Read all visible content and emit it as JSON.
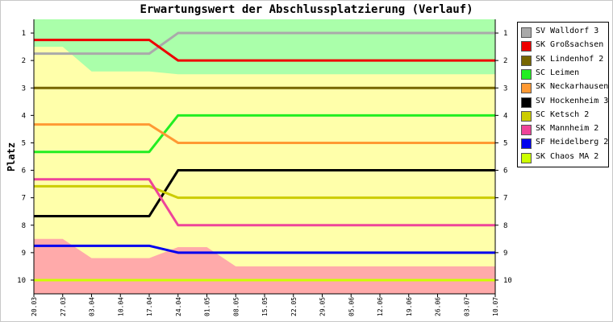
{
  "chart_data": {
    "type": "line",
    "title": "Erwartungswert der Abschlussplatzierung (Verlauf)",
    "ylabel": "Platz",
    "xlabel": "",
    "categories": [
      "20.03",
      "27.03",
      "03.04",
      "10.04",
      "17.04",
      "24.04",
      "01.05",
      "08.05",
      "15.05",
      "22.05",
      "29.05",
      "05.06",
      "12.06",
      "19.06",
      "26.06",
      "03.07",
      "10.07"
    ],
    "ylim": [
      0.5,
      10.5
    ],
    "y_ticks": [
      "1",
      "2",
      "3",
      "4",
      "5",
      "6",
      "7",
      "8",
      "9",
      "10"
    ],
    "y_inverted": true,
    "legend_position": "right",
    "grid": false,
    "bands": {
      "promotion": {
        "color": "#aaffaa",
        "lower_edge": [
          1.5,
          1.5,
          2.4,
          2.4,
          2.4,
          2.5,
          2.5,
          2.5,
          2.5,
          2.5,
          2.5,
          2.5,
          2.5,
          2.5,
          2.5,
          2.5,
          2.5
        ]
      },
      "middle": {
        "color": "#ffffaa"
      },
      "relegation": {
        "color": "#ffaaaa",
        "upper_edge": [
          8.5,
          8.5,
          9.2,
          9.2,
          9.2,
          8.8,
          8.8,
          9.5,
          9.5,
          9.5,
          9.5,
          9.5,
          9.5,
          9.5,
          9.5,
          9.5,
          9.5
        ]
      }
    },
    "series": [
      {
        "name": "SV Walldorf 3",
        "color": "#aaaaaa",
        "values": [
          1.75,
          1.75,
          1.75,
          1.75,
          1.75,
          1,
          1,
          1,
          1,
          1,
          1,
          1,
          1,
          1,
          1,
          1,
          1
        ]
      },
      {
        "name": "SK Großsachsen",
        "color": "#ee0000",
        "values": [
          1.25,
          1.25,
          1.25,
          1.25,
          1.25,
          2,
          2,
          2,
          2,
          2,
          2,
          2,
          2,
          2,
          2,
          2,
          2
        ]
      },
      {
        "name": "SK Lindenhof 2",
        "color": "#776600",
        "values": [
          3,
          3,
          3,
          3,
          3,
          3,
          3,
          3,
          3,
          3,
          3,
          3,
          3,
          3,
          3,
          3,
          3
        ]
      },
      {
        "name": "SC Leimen",
        "color": "#22ee22",
        "values": [
          5.33,
          5.33,
          5.33,
          5.33,
          5.33,
          4,
          4,
          4,
          4,
          4,
          4,
          4,
          4,
          4,
          4,
          4,
          4
        ]
      },
      {
        "name": "SK Neckarhausen",
        "color": "#ff9933",
        "values": [
          4.33,
          4.33,
          4.33,
          4.33,
          4.33,
          5,
          5,
          5,
          5,
          5,
          5,
          5,
          5,
          5,
          5,
          5,
          5
        ]
      },
      {
        "name": "SV Hockenheim 3",
        "color": "#000000",
        "values": [
          7.67,
          7.67,
          7.67,
          7.67,
          7.67,
          6,
          6,
          6,
          6,
          6,
          6,
          6,
          6,
          6,
          6,
          6,
          6
        ]
      },
      {
        "name": "SC Ketsch 2",
        "color": "#cccc00",
        "values": [
          6.58,
          6.58,
          6.58,
          6.58,
          6.58,
          7,
          7,
          7,
          7,
          7,
          7,
          7,
          7,
          7,
          7,
          7,
          7
        ]
      },
      {
        "name": "SK Mannheim 2",
        "color": "#ee4499",
        "values": [
          6.33,
          6.33,
          6.33,
          6.33,
          6.33,
          8,
          8,
          8,
          8,
          8,
          8,
          8,
          8,
          8,
          8,
          8,
          8
        ]
      },
      {
        "name": "SF Heidelberg 2",
        "color": "#0000ee",
        "values": [
          8.75,
          8.75,
          8.75,
          8.75,
          8.75,
          9,
          9,
          9,
          9,
          9,
          9,
          9,
          9,
          9,
          9,
          9,
          9
        ]
      },
      {
        "name": "SK Chaos MA 2",
        "color": "#ccff00",
        "values": [
          10,
          10,
          10,
          10,
          10,
          10,
          10,
          10,
          10,
          10,
          10,
          10,
          10,
          10,
          10,
          10,
          10
        ]
      }
    ]
  }
}
